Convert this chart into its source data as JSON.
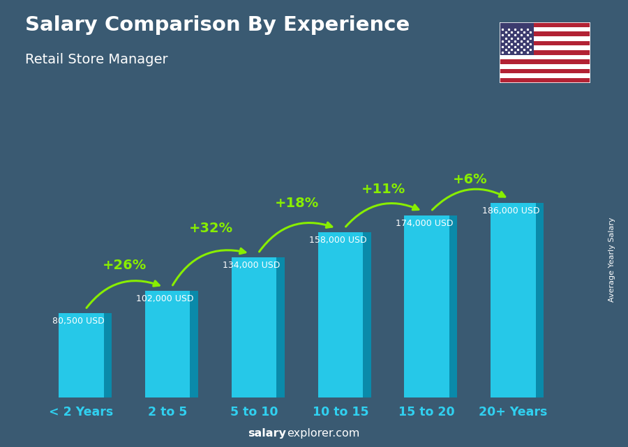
{
  "categories": [
    "< 2 Years",
    "2 to 5",
    "5 to 10",
    "10 to 15",
    "15 to 20",
    "20+ Years"
  ],
  "values": [
    80500,
    102000,
    134000,
    158000,
    174000,
    186000
  ],
  "labels": [
    "80,500 USD",
    "102,000 USD",
    "134,000 USD",
    "158,000 USD",
    "174,000 USD",
    "186,000 USD"
  ],
  "pct_changes": [
    "+26%",
    "+32%",
    "+18%",
    "+11%",
    "+6%"
  ],
  "title": "Salary Comparison By Experience",
  "subtitle": "Retail Store Manager",
  "ylabel": "Average Yearly Salary",
  "bar_front": "#26c8e8",
  "bar_side": "#0a8aaa",
  "bar_top": "#60e0f5",
  "bg_color": "#3a5a72",
  "text_color": "#ffffff",
  "green_color": "#88ee00",
  "tick_color": "#30d0f0",
  "watermark_bold": "salary",
  "watermark_regular": "explorer.com"
}
